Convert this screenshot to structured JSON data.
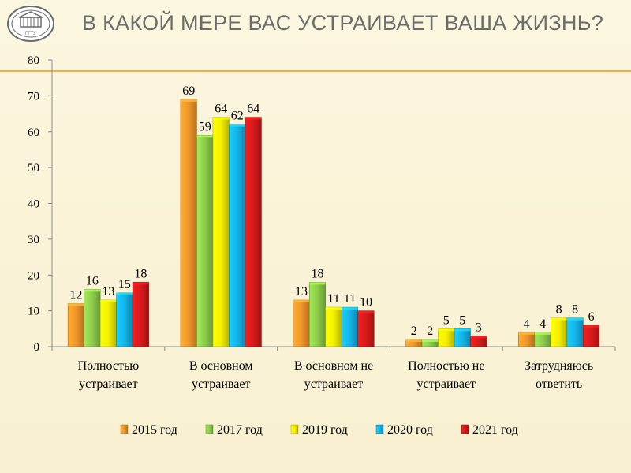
{
  "header": {
    "title": "В КАКОЙ МЕРЕ ВАС УСТРАИВАЕТ ВАША ЖИЗНЬ?",
    "logo_text": "ГГТУ"
  },
  "chart_data": {
    "type": "bar",
    "title": "В КАКОЙ МЕРЕ ВАС УСТРАИВАЕТ ВАША ЖИЗНЬ?",
    "xlabel": "",
    "ylabel": "",
    "ylim": [
      0,
      80
    ],
    "yticks": [
      0,
      10,
      20,
      30,
      40,
      50,
      60,
      70,
      80
    ],
    "grid": false,
    "legend_position": "bottom",
    "categories": [
      [
        "Полностью",
        "устраивает"
      ],
      [
        "В основном",
        "устраивает"
      ],
      [
        "В основном не",
        "устраивает"
      ],
      [
        "Полностью не",
        "устраивает"
      ],
      [
        "Затрудняюсь",
        "ответить"
      ]
    ],
    "series": [
      {
        "name": "2015 год",
        "color": "#f0962a",
        "values": [
          12,
          69,
          13,
          2,
          4
        ]
      },
      {
        "name": "2017 год",
        "color": "#8ccc4a",
        "values": [
          16,
          59,
          18,
          2,
          4
        ]
      },
      {
        "name": "2019 год",
        "color": "#f4f000",
        "values": [
          13,
          64,
          11,
          5,
          8
        ]
      },
      {
        "name": "2020 год",
        "color": "#14b4e8",
        "values": [
          15,
          62,
          11,
          5,
          8
        ]
      },
      {
        "name": "2021 год",
        "color": "#d61a1a",
        "values": [
          18,
          64,
          10,
          3,
          6
        ]
      }
    ]
  }
}
